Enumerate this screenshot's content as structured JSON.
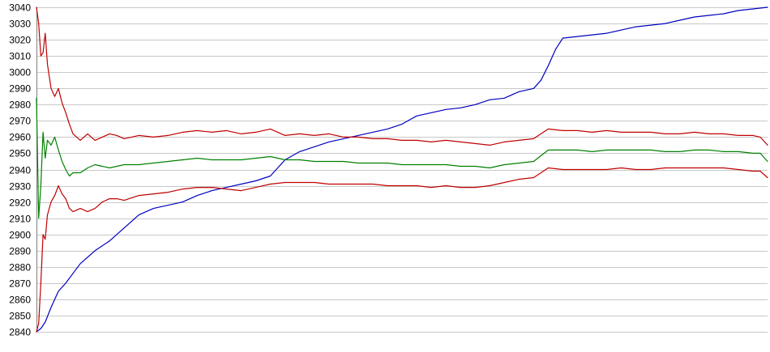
{
  "chart_data": {
    "type": "line",
    "title": "",
    "xlabel": "",
    "ylabel": "",
    "ylim": [
      2840,
      3040
    ],
    "xlim": [
      0,
      100
    ],
    "yticks": [
      2840,
      2850,
      2860,
      2870,
      2880,
      2890,
      2900,
      2910,
      2920,
      2930,
      2940,
      2950,
      2960,
      2970,
      2980,
      2990,
      3000,
      3010,
      3020,
      3030,
      3040
    ],
    "grid": true,
    "legend": "none",
    "series": [
      {
        "color": "#0000c0",
        "x": [
          0,
          0.6,
          1.2,
          2,
          3,
          4,
          5,
          6,
          8,
          10,
          12,
          14,
          16,
          18,
          20,
          22,
          24,
          26,
          28,
          30,
          32,
          34,
          36,
          38,
          40,
          41,
          42,
          44,
          46,
          48,
          50,
          52,
          54,
          56,
          58,
          60,
          62,
          64,
          66,
          68,
          69,
          70,
          71,
          72,
          74,
          76,
          78,
          80,
          82,
          84,
          86,
          88,
          90,
          92,
          94,
          96,
          98,
          100
        ],
        "y": [
          2840,
          2842,
          2846,
          2855,
          2865,
          2870,
          2876,
          2882,
          2890,
          2896,
          2904,
          2912,
          2916,
          2918,
          2920,
          2924,
          2927,
          2929,
          2931,
          2933,
          2936,
          2946,
          2951,
          2954,
          2957,
          2958,
          2959,
          2961,
          2963,
          2965,
          2968,
          2973,
          2975,
          2977,
          2978,
          2980,
          2983,
          2984,
          2988,
          2990,
          2995,
          3004,
          3014,
          3021,
          3022,
          3023,
          3024,
          3026,
          3028,
          3029,
          3030,
          3032,
          3034,
          3035,
          3036,
          3038,
          3039,
          3040
        ]
      },
      {
        "color": "#c00000",
        "x": [
          0,
          0.3,
          0.6,
          0.9,
          1.2,
          1.5,
          2,
          2.5,
          3,
          3.5,
          4,
          4.5,
          5,
          6,
          7,
          8,
          9,
          10,
          11,
          12,
          14,
          16,
          18,
          20,
          22,
          24,
          26,
          28,
          30,
          32,
          34,
          36,
          38,
          40,
          42,
          44,
          46,
          48,
          50,
          52,
          54,
          56,
          58,
          60,
          62,
          64,
          66,
          68,
          70,
          72,
          74,
          76,
          78,
          80,
          82,
          84,
          86,
          88,
          90,
          92,
          94,
          96,
          98,
          99,
          100
        ],
        "y": [
          3040,
          3030,
          3010,
          3012,
          3024,
          3005,
          2990,
          2985,
          2990,
          2981,
          2975,
          2968,
          2962,
          2958,
          2962,
          2958,
          2960,
          2962,
          2961,
          2959,
          2961,
          2960,
          2961,
          2963,
          2964,
          2963,
          2964,
          2962,
          2963,
          2965,
          2961,
          2962,
          2961,
          2962,
          2960,
          2960,
          2959,
          2959,
          2958,
          2958,
          2957,
          2958,
          2957,
          2956,
          2955,
          2957,
          2958,
          2959,
          2965,
          2964,
          2964,
          2963,
          2964,
          2963,
          2963,
          2963,
          2962,
          2962,
          2963,
          2962,
          2962,
          2961,
          2961,
          2960,
          2955
        ]
      },
      {
        "color": "#008000",
        "x": [
          0,
          0.3,
          0.6,
          0.9,
          1.2,
          1.5,
          2,
          2.5,
          3,
          3.5,
          4,
          4.5,
          5,
          6,
          7,
          8,
          9,
          10,
          11,
          12,
          14,
          16,
          18,
          20,
          22,
          24,
          26,
          28,
          30,
          32,
          34,
          36,
          38,
          40,
          42,
          44,
          46,
          48,
          50,
          52,
          54,
          56,
          58,
          60,
          62,
          64,
          66,
          68,
          70,
          72,
          74,
          76,
          78,
          80,
          82,
          84,
          86,
          88,
          90,
          92,
          94,
          96,
          98,
          99,
          100
        ],
        "y": [
          2984,
          2910,
          2930,
          2963,
          2947,
          2958,
          2955,
          2960,
          2952,
          2945,
          2940,
          2936,
          2938,
          2938,
          2941,
          2943,
          2942,
          2941,
          2942,
          2943,
          2943,
          2944,
          2945,
          2946,
          2947,
          2946,
          2946,
          2946,
          2947,
          2948,
          2946,
          2946,
          2945,
          2945,
          2945,
          2944,
          2944,
          2944,
          2943,
          2943,
          2943,
          2943,
          2942,
          2942,
          2941,
          2943,
          2944,
          2945,
          2952,
          2952,
          2952,
          2951,
          2952,
          2952,
          2952,
          2952,
          2951,
          2951,
          2952,
          2952,
          2951,
          2951,
          2950,
          2950,
          2945
        ]
      },
      {
        "color": "#c00000",
        "x": [
          0,
          0.3,
          0.6,
          0.9,
          1.2,
          1.5,
          2,
          2.5,
          3,
          3.5,
          4,
          4.5,
          5,
          6,
          7,
          8,
          9,
          10,
          11,
          12,
          14,
          16,
          18,
          20,
          22,
          24,
          26,
          28,
          30,
          32,
          34,
          36,
          38,
          40,
          42,
          44,
          46,
          48,
          50,
          52,
          54,
          56,
          58,
          60,
          62,
          64,
          66,
          68,
          70,
          72,
          74,
          76,
          78,
          80,
          82,
          84,
          86,
          88,
          90,
          92,
          94,
          96,
          98,
          99,
          100
        ],
        "y": [
          2840,
          2845,
          2870,
          2900,
          2897,
          2912,
          2920,
          2924,
          2930,
          2925,
          2922,
          2916,
          2914,
          2916,
          2914,
          2916,
          2920,
          2922,
          2922,
          2921,
          2924,
          2925,
          2926,
          2928,
          2929,
          2929,
          2928,
          2927,
          2929,
          2931,
          2932,
          2932,
          2932,
          2931,
          2931,
          2931,
          2931,
          2930,
          2930,
          2930,
          2929,
          2930,
          2929,
          2929,
          2930,
          2932,
          2934,
          2935,
          2941,
          2940,
          2940,
          2940,
          2940,
          2941,
          2940,
          2940,
          2941,
          2941,
          2941,
          2941,
          2941,
          2940,
          2939,
          2939,
          2935
        ]
      }
    ]
  }
}
